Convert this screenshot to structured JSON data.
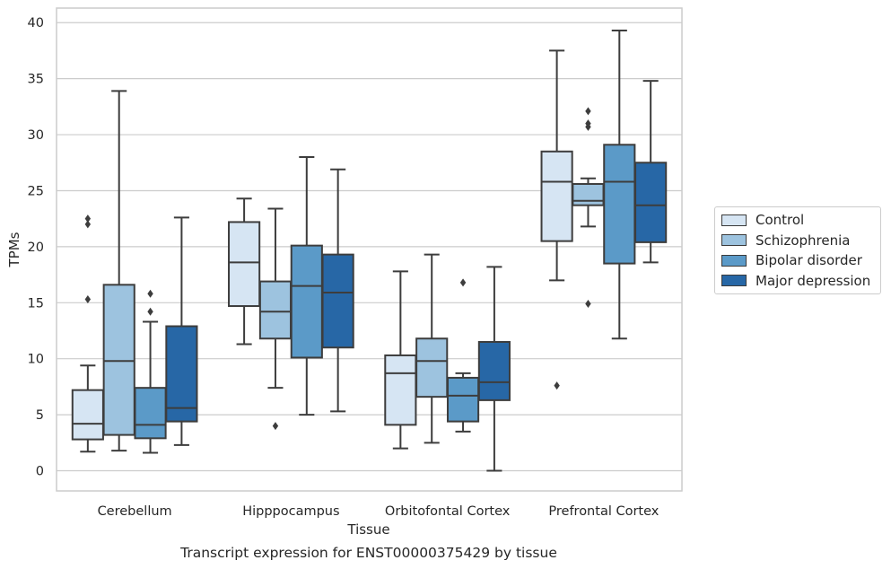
{
  "chart_data": {
    "type": "box",
    "title": "Transcript expression for ENST00000375429 by tissue",
    "xlabel": "Tissue",
    "ylabel": "TPMs",
    "ylim": [
      -1.8,
      41.3
    ],
    "yticks": [
      0,
      5,
      10,
      15,
      20,
      25,
      30,
      35,
      40
    ],
    "grid": true,
    "legend_position": "right",
    "categories": [
      "Cerebellum",
      "Hipppocampus",
      "Orbitofontal Cortex",
      "Prefrontal Cortex"
    ],
    "series": [
      {
        "name": "Control",
        "color": "#d6e5f3",
        "boxes": [
          {
            "whislo": 1.7,
            "q1": 2.8,
            "med": 4.2,
            "q3": 7.2,
            "whishi": 9.4,
            "fliers": [
              15.3,
              22.0,
              22.5
            ]
          },
          {
            "whislo": 11.3,
            "q1": 14.7,
            "med": 18.6,
            "q3": 22.2,
            "whishi": 24.3,
            "fliers": []
          },
          {
            "whislo": 2.0,
            "q1": 4.1,
            "med": 8.7,
            "q3": 10.3,
            "whishi": 17.8,
            "fliers": []
          },
          {
            "whislo": 17.0,
            "q1": 20.5,
            "med": 25.8,
            "q3": 28.5,
            "whishi": 37.5,
            "fliers": [
              7.6
            ]
          }
        ]
      },
      {
        "name": "Schizophrenia",
        "color": "#9dc3df",
        "boxes": [
          {
            "whislo": 1.8,
            "q1": 3.2,
            "med": 9.8,
            "q3": 16.6,
            "whishi": 33.9,
            "fliers": []
          },
          {
            "whislo": 7.4,
            "q1": 11.8,
            "med": 14.2,
            "q3": 16.9,
            "whishi": 23.4,
            "fliers": [
              4.0
            ]
          },
          {
            "whislo": 2.5,
            "q1": 6.6,
            "med": 9.8,
            "q3": 11.8,
            "whishi": 19.3,
            "fliers": []
          },
          {
            "whislo": 21.8,
            "q1": 23.7,
            "med": 24.1,
            "q3": 25.6,
            "whishi": 26.1,
            "fliers": [
              14.9,
              30.7,
              31.0,
              32.1
            ]
          }
        ]
      },
      {
        "name": "Bipolar disorder",
        "color": "#5b9ac8",
        "boxes": [
          {
            "whislo": 1.6,
            "q1": 2.9,
            "med": 4.1,
            "q3": 7.4,
            "whishi": 13.3,
            "fliers": [
              14.2,
              15.8
            ]
          },
          {
            "whislo": 5.0,
            "q1": 10.1,
            "med": 16.5,
            "q3": 20.1,
            "whishi": 28.0,
            "fliers": []
          },
          {
            "whislo": 3.5,
            "q1": 4.4,
            "med": 6.7,
            "q3": 8.3,
            "whishi": 8.7,
            "fliers": [
              16.8
            ]
          },
          {
            "whislo": 11.8,
            "q1": 18.5,
            "med": 25.8,
            "q3": 29.1,
            "whishi": 39.3,
            "fliers": []
          }
        ]
      },
      {
        "name": "Major depression",
        "color": "#2767a6",
        "boxes": [
          {
            "whislo": 2.3,
            "q1": 4.4,
            "med": 5.6,
            "q3": 12.9,
            "whishi": 22.6,
            "fliers": []
          },
          {
            "whislo": 5.3,
            "q1": 11.0,
            "med": 15.9,
            "q3": 19.3,
            "whishi": 26.9,
            "fliers": []
          },
          {
            "whislo": 0.0,
            "q1": 6.3,
            "med": 7.9,
            "q3": 11.5,
            "whishi": 18.2,
            "fliers": []
          },
          {
            "whislo": 18.6,
            "q1": 20.4,
            "med": 23.7,
            "q3": 27.5,
            "whishi": 34.8,
            "fliers": []
          }
        ]
      }
    ]
  }
}
